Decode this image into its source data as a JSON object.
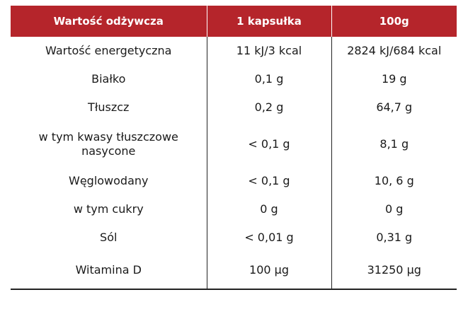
{
  "table": {
    "headers": [
      "Wartość odżywcza",
      "1 kapsułka",
      "100g"
    ],
    "rows": [
      [
        "Wartość energetyczna",
        "11 kJ/3 kcal",
        "2824 kJ/684 kcal"
      ],
      [
        "Białko",
        "0,1 g",
        "19 g"
      ],
      [
        "Tłuszcz",
        "0,2 g",
        "64,7 g"
      ],
      [
        "w tym kwasy tłuszczowe nasycone",
        "< 0,1 g",
        "8,1 g"
      ],
      [
        "Węglowodany",
        "< 0,1 g",
        "10, 6 g"
      ],
      [
        "w tym cukry",
        "0 g",
        "0 g"
      ],
      [
        "Sól",
        "< 0,01 g",
        "0,31 g"
      ],
      [
        "Witamina D",
        "100 µg",
        "31250 µg"
      ]
    ]
  },
  "colors": {
    "header_bg": "#b5252b",
    "header_text": "#ffffff",
    "border": "#222222"
  }
}
